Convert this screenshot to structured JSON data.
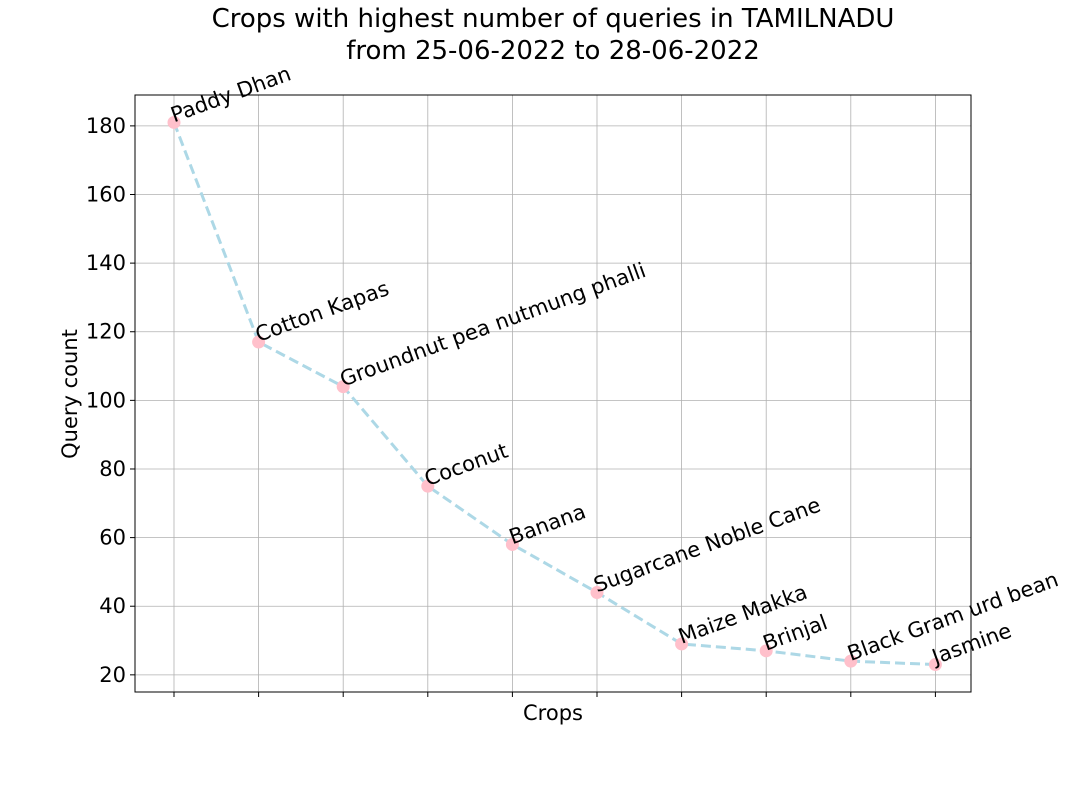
{
  "chart_data": {
    "type": "line",
    "title": "Crops with highest number of queries in TAMILNADU",
    "subtitle": "from 25-06-2022 to 28-06-2022",
    "xlabel": "Crops",
    "ylabel": "Query count",
    "categories": [
      "Paddy Dhan",
      "Cotton Kapas",
      "Groundnut pea nutmung phalli",
      "Coconut",
      "Banana",
      "Sugarcane Noble Cane",
      "Maize Makka",
      "Brinjal",
      "Black Gram urd bean",
      "Jasmine"
    ],
    "values": [
      181,
      117,
      104,
      75,
      58,
      44,
      29,
      27,
      24,
      23
    ],
    "ylim": [
      15,
      189
    ],
    "yticks": [
      20,
      40,
      60,
      80,
      100,
      120,
      140,
      160,
      180
    ],
    "grid": true,
    "line_style": "dashed",
    "colors": {
      "line": "#add8e6",
      "marker": "#ffc0cb",
      "grid": "#b0b0b0"
    }
  }
}
